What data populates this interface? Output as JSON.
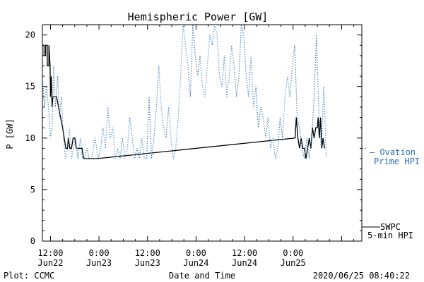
{
  "chart_data": {
    "type": "line",
    "title": "Hemispheric Power [GW]",
    "xlabel": "Date and Time",
    "ylabel": "P [GW]",
    "ylim": [
      0,
      21
    ],
    "yticks": [
      0,
      5,
      10,
      15,
      20
    ],
    "y_tick_labels": [
      "0",
      "5",
      "10",
      "15",
      "20"
    ],
    "x_range_hours": [
      -14,
      65
    ],
    "x_tick_hours": [
      -12,
      0,
      12,
      24,
      36,
      48,
      60
    ],
    "x_tick_labels_top": [
      "12:00",
      "0:00",
      "12:00",
      "0:00",
      "12:00",
      "0:00"
    ],
    "x_tick_labels_bottom": [
      "Jun22",
      "Jun23",
      "Jun23",
      "Jun24",
      "Jun24",
      "Jun25"
    ],
    "x_major_hours": [
      -12,
      0,
      12,
      24,
      36,
      48
    ],
    "grid": false,
    "series": [
      {
        "legend_line1": "SWPC",
        "legend_line2": "5-min HPI",
        "color": "#000000",
        "style": "solid",
        "points": [
          [
            -14,
            19
          ],
          [
            -13.6,
            19
          ],
          [
            -13.6,
            18
          ],
          [
            -13.2,
            18
          ],
          [
            -13.2,
            19
          ],
          [
            -12.8,
            19
          ],
          [
            -12.8,
            17
          ],
          [
            -12.4,
            17
          ],
          [
            -12.4,
            19
          ],
          [
            -12.1,
            17
          ],
          [
            -12.0,
            14
          ],
          [
            -11.8,
            16
          ],
          [
            -11.6,
            13
          ],
          [
            -11.4,
            14
          ],
          [
            -11.0,
            14
          ],
          [
            -10.5,
            14
          ],
          [
            -10,
            13
          ],
          [
            -9.5,
            12
          ],
          [
            -9.0,
            11
          ],
          [
            -8.6,
            10
          ],
          [
            -8.2,
            9
          ],
          [
            -7.8,
            9
          ],
          [
            -7.6,
            10
          ],
          [
            -7.2,
            9
          ],
          [
            -6.8,
            9
          ],
          [
            -6.4,
            10
          ],
          [
            -6.0,
            10
          ],
          [
            -5.6,
            9
          ],
          [
            -4.8,
            9
          ],
          [
            -4.4,
            9
          ],
          [
            -4.2,
            9
          ],
          [
            -3.8,
            8
          ],
          [
            -2.0,
            8
          ],
          [
            -0.5,
            8
          ],
          [
            48.5,
            10
          ],
          [
            48.8,
            12
          ],
          [
            49.2,
            10
          ],
          [
            49.6,
            9
          ],
          [
            50.0,
            10
          ],
          [
            50.4,
            9
          ],
          [
            50.8,
            9
          ],
          [
            51.2,
            8
          ],
          [
            51.6,
            9
          ],
          [
            52.0,
            10
          ],
          [
            52.4,
            9
          ],
          [
            52.8,
            11
          ],
          [
            53.2,
            10
          ],
          [
            53.6,
            11
          ],
          [
            54.0,
            11
          ],
          [
            54.2,
            12
          ],
          [
            54.5,
            10
          ],
          [
            54.8,
            12
          ],
          [
            55.1,
            9
          ],
          [
            55.4,
            10
          ],
          [
            55.8,
            9
          ]
        ]
      },
      {
        "legend_label": "Ovation",
        "legend_label2": "Prime HPI",
        "color": "#2b6fb8",
        "style": "dotted",
        "points": [
          [
            -14,
            16
          ],
          [
            -13.5,
            13
          ],
          [
            -13,
            15
          ],
          [
            -12.5,
            13
          ],
          [
            -12,
            10
          ],
          [
            -11.6,
            11
          ],
          [
            -11.2,
            17
          ],
          [
            -10.8,
            13
          ],
          [
            -10.2,
            16
          ],
          [
            -9.8,
            12
          ],
          [
            -9.3,
            14
          ],
          [
            -8.8,
            10
          ],
          [
            -8.3,
            8
          ],
          [
            -7.8,
            9
          ],
          [
            -7.3,
            11
          ],
          [
            -6.8,
            8
          ],
          [
            -6.3,
            9
          ],
          [
            -5.8,
            10
          ],
          [
            -5.2,
            8
          ],
          [
            -4.6,
            10
          ],
          [
            -4.1,
            8
          ],
          [
            -3.6,
            8
          ],
          [
            -3.0,
            9
          ],
          [
            -2.4,
            8
          ],
          [
            -1.8,
            8
          ],
          [
            -1.0,
            10
          ],
          [
            -0.2,
            8
          ],
          [
            0.4,
            9
          ],
          [
            1.0,
            11
          ],
          [
            1.6,
            9
          ],
          [
            2.2,
            13
          ],
          [
            2.8,
            10
          ],
          [
            3.4,
            11
          ],
          [
            4.0,
            8
          ],
          [
            4.6,
            9
          ],
          [
            5.2,
            8
          ],
          [
            5.8,
            10
          ],
          [
            6.4,
            8
          ],
          [
            7.0,
            9
          ],
          [
            7.6,
            12
          ],
          [
            8.2,
            10
          ],
          [
            8.8,
            8
          ],
          [
            9.4,
            9
          ],
          [
            10.0,
            8
          ],
          [
            10.6,
            10
          ],
          [
            11.2,
            8
          ],
          [
            11.8,
            8
          ],
          [
            12.4,
            14
          ],
          [
            13.0,
            8
          ],
          [
            13.6,
            10
          ],
          [
            14.2,
            13
          ],
          [
            14.8,
            17
          ],
          [
            15.4,
            13
          ],
          [
            16.0,
            11
          ],
          [
            16.6,
            10
          ],
          [
            17.2,
            13
          ],
          [
            17.8,
            10
          ],
          [
            18.4,
            8
          ],
          [
            19.0,
            9
          ],
          [
            19.6,
            12
          ],
          [
            20.2,
            16
          ],
          [
            20.8,
            21
          ],
          [
            21.4,
            19
          ],
          [
            22.0,
            17
          ],
          [
            22.6,
            14
          ],
          [
            23.2,
            21
          ],
          [
            23.8,
            18
          ],
          [
            24.4,
            16
          ],
          [
            25.0,
            18
          ],
          [
            25.6,
            15
          ],
          [
            26.2,
            14
          ],
          [
            26.8,
            17
          ],
          [
            27.4,
            20
          ],
          [
            28.0,
            19
          ],
          [
            28.6,
            21
          ],
          [
            29.2,
            20
          ],
          [
            29.8,
            16
          ],
          [
            30.4,
            15
          ],
          [
            31.0,
            18
          ],
          [
            31.6,
            14
          ],
          [
            32.2,
            16
          ],
          [
            32.8,
            19
          ],
          [
            33.4,
            17
          ],
          [
            34.0,
            14
          ],
          [
            34.6,
            16
          ],
          [
            35.2,
            21
          ],
          [
            35.8,
            20
          ],
          [
            36.4,
            16
          ],
          [
            37.0,
            14
          ],
          [
            37.6,
            18
          ],
          [
            38.2,
            13
          ],
          [
            38.8,
            15
          ],
          [
            39.4,
            11
          ],
          [
            40.0,
            13
          ],
          [
            40.6,
            12
          ],
          [
            41.2,
            10
          ],
          [
            41.8,
            12
          ],
          [
            42.4,
            9
          ],
          [
            43.0,
            10
          ],
          [
            43.6,
            8
          ],
          [
            44.2,
            9
          ],
          [
            44.8,
            12
          ],
          [
            45.4,
            10
          ],
          [
            46.0,
            14
          ],
          [
            46.6,
            16
          ],
          [
            47.2,
            14
          ],
          [
            47.8,
            17
          ],
          [
            48.4,
            19
          ],
          [
            49.0,
            12
          ],
          [
            49.6,
            11
          ],
          [
            50.2,
            9
          ],
          [
            50.8,
            8
          ],
          [
            51.4,
            10
          ],
          [
            52.0,
            8
          ],
          [
            52.6,
            10
          ],
          [
            53.2,
            14
          ],
          [
            53.8,
            20
          ],
          [
            54.4,
            12
          ],
          [
            55.0,
            9
          ],
          [
            55.6,
            15
          ],
          [
            56.2,
            8
          ]
        ]
      }
    ]
  },
  "footer": {
    "plot_credit": "Plot: CCMC",
    "timestamp": "2020/06/25 08:40:22"
  },
  "legend": {
    "blue_dash": "— Ovation",
    "blue_line2": "Prime HPI",
    "black_line1": "SWPC",
    "black_line2": "5-min HPI"
  }
}
